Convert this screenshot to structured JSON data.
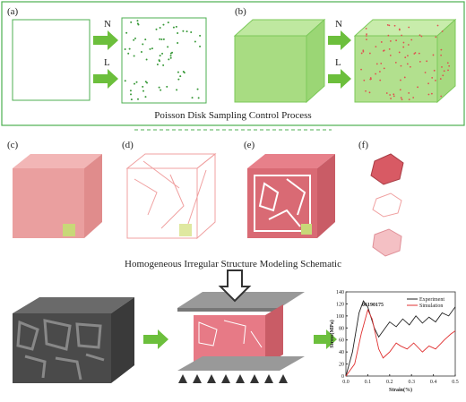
{
  "panel_top": {
    "label_a": "(a)",
    "label_b": "(b)",
    "arrow_n": "N",
    "arrow_l": "L",
    "caption": "Poisson Disk Sampling Control Process"
  },
  "panel_middle": {
    "label_c": "(c)",
    "label_d": "(d)",
    "label_e": "(e)",
    "label_f": "(f)",
    "caption": "Homogeneous Irregular Structure Modeling Schematic"
  },
  "stress_strain_plot": {
    "type": "line",
    "sample_id": "06190175",
    "x_label": "Strain(%)",
    "y_label": "Stress(MPa)",
    "xlim": [
      0,
      0.5
    ],
    "ylim": [
      0,
      140
    ],
    "xticks": [
      {
        "value": 0,
        "label": "0.0"
      },
      0.1,
      0.2,
      0.3,
      0.4,
      0.5
    ],
    "yticks": [
      0,
      20,
      40,
      60,
      80,
      100,
      120,
      140
    ],
    "series": [
      {
        "name": "Experiment",
        "color": "#222222",
        "x": [
          0,
          0.03,
          0.06,
          0.08,
          0.1,
          0.13,
          0.15,
          0.18,
          0.2,
          0.23,
          0.26,
          0.29,
          0.32,
          0.35,
          0.38,
          0.41,
          0.44,
          0.47,
          0.5
        ],
        "values": [
          0,
          40,
          105,
          125,
          115,
          80,
          65,
          80,
          90,
          82,
          95,
          85,
          100,
          88,
          98,
          90,
          105,
          100,
          115
        ]
      },
      {
        "name": "Simulation",
        "color": "#e03030",
        "x": [
          0,
          0.04,
          0.07,
          0.1,
          0.12,
          0.15,
          0.17,
          0.2,
          0.23,
          0.25,
          0.28,
          0.31,
          0.35,
          0.38,
          0.41,
          0.45,
          0.48,
          0.5
        ],
        "values": [
          0,
          20,
          70,
          110,
          95,
          45,
          30,
          40,
          55,
          50,
          45,
          55,
          40,
          50,
          45,
          60,
          70,
          75
        ]
      }
    ]
  }
}
